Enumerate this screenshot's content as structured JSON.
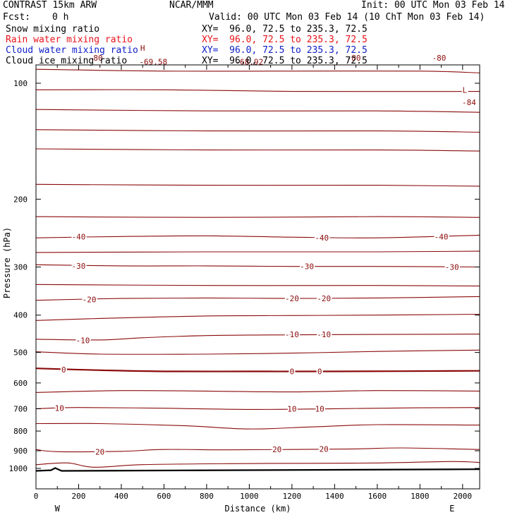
{
  "header": {
    "title": "CONTRAST 15km ARW",
    "center": "NCAR/MMM",
    "init": "Init: 00 UTC Mon 03 Feb 14",
    "fcst_label": "Fcst:",
    "fcst_value": "0 h",
    "valid": "Valid: 00 UTC Mon 03 Feb 14 (10 ChT Mon 03 Feb 14)"
  },
  "fields": [
    {
      "name": "Snow mixing ratio",
      "xy": "XY=  96.0, 72.5 to 235.3, 72.5",
      "color": "#000000"
    },
    {
      "name": "Rain water mixing ratio",
      "xy": "XY=  96.0, 72.5 to 235.3, 72.5",
      "color": "#e8121a"
    },
    {
      "name": "Cloud water mixing ratio",
      "xy": "XY=  96.0, 72.5 to 235.3, 72.5",
      "color": "#1020c8"
    },
    {
      "name": "Cloud ice mixing ratio",
      "xy": "XY=  96.0, 72.5 to 235.3, 72.5",
      "color": "#000000"
    }
  ],
  "chart_data": {
    "type": "contour",
    "title": "",
    "xlabel": "Distance (km)",
    "ylabel": "Pressure (hPa)",
    "xlim": [
      0,
      2080
    ],
    "ylim": [
      1050,
      50
    ],
    "y_scale": "log",
    "x_ticks": [
      0,
      200,
      400,
      600,
      800,
      1000,
      1200,
      1400,
      1600,
      1800,
      2000
    ],
    "y_ticks": [
      100,
      200,
      300,
      400,
      500,
      600,
      700,
      800,
      900,
      1000
    ],
    "x_end_labels": {
      "left": "W",
      "right": "E"
    },
    "contour_color": "#8b0a0a",
    "contour_interval": 5,
    "zero_line_bold": true,
    "contours": [
      {
        "value": -80,
        "labels": [
          {
            "text": "-80",
            "x": 280,
            "p": 86
          },
          {
            "text": "-80",
            "x": 1490,
            "p": 86
          },
          {
            "text": "-80",
            "x": 1890,
            "p": 86
          }
        ],
        "points": [
          [
            0,
            83
          ],
          [
            400,
            82
          ],
          [
            800,
            82
          ],
          [
            1200,
            83
          ],
          [
            1600,
            84
          ],
          [
            2080,
            84
          ]
        ]
      },
      {
        "value": -75,
        "labels": [],
        "points": [
          [
            0,
            92
          ],
          [
            600,
            93
          ],
          [
            1200,
            93
          ],
          [
            1800,
            93
          ],
          [
            2080,
            94
          ]
        ]
      },
      {
        "value": -70,
        "labels": [],
        "points": [
          [
            0,
            104
          ],
          [
            600,
            104
          ],
          [
            1200,
            105
          ],
          [
            2080,
            105
          ]
        ]
      },
      {
        "value": -65,
        "labels": [],
        "points": [
          [
            0,
            117
          ],
          [
            800,
            118
          ],
          [
            1600,
            118
          ],
          [
            2080,
            119
          ]
        ]
      },
      {
        "value": -60,
        "labels": [],
        "points": [
          [
            0,
            132
          ],
          [
            800,
            133
          ],
          [
            1600,
            133
          ],
          [
            2080,
            134
          ]
        ]
      },
      {
        "value": -55,
        "labels": [],
        "points": [
          [
            0,
            148
          ],
          [
            800,
            149
          ],
          [
            1600,
            149
          ],
          [
            2080,
            150
          ]
        ]
      },
      {
        "value": -50,
        "labels": [],
        "points": [
          [
            0,
            183
          ],
          [
            800,
            184
          ],
          [
            1600,
            184
          ],
          [
            2080,
            185
          ]
        ]
      },
      {
        "value": -45,
        "labels": [],
        "points": [
          [
            0,
            222
          ],
          [
            800,
            223
          ],
          [
            1600,
            222
          ],
          [
            2080,
            223
          ]
        ]
      },
      {
        "value": -40,
        "labels": [
          {
            "text": "-40",
            "x": 200,
            "p": 250
          },
          {
            "text": "-40",
            "x": 1340,
            "p": 252
          },
          {
            "text": "-40",
            "x": 1900,
            "p": 250
          }
        ],
        "points": [
          [
            0,
            252
          ],
          [
            400,
            250
          ],
          [
            800,
            249
          ],
          [
            1200,
            251
          ],
          [
            1600,
            252
          ],
          [
            2080,
            248
          ]
        ]
      },
      {
        "value": -35,
        "labels": [],
        "points": [
          [
            0,
            275
          ],
          [
            800,
            274
          ],
          [
            1600,
            274
          ],
          [
            2080,
            273
          ]
        ]
      },
      {
        "value": -30,
        "labels": [
          {
            "text": "-30",
            "x": 200,
            "p": 298
          },
          {
            "text": "-30",
            "x": 1270,
            "p": 299
          },
          {
            "text": "-30",
            "x": 1950,
            "p": 300
          }
        ],
        "points": [
          [
            0,
            296
          ],
          [
            400,
            298
          ],
          [
            800,
            298
          ],
          [
            1200,
            299
          ],
          [
            1600,
            299
          ],
          [
            2080,
            300
          ]
        ]
      },
      {
        "value": -25,
        "labels": [],
        "points": [
          [
            0,
            333
          ],
          [
            800,
            335
          ],
          [
            1600,
            335
          ],
          [
            2080,
            336
          ]
        ]
      },
      {
        "value": -20,
        "labels": [
          {
            "text": "-20",
            "x": 250,
            "p": 364
          },
          {
            "text": "-20",
            "x": 1200,
            "p": 362
          },
          {
            "text": "-20",
            "x": 1350,
            "p": 362
          }
        ],
        "points": [
          [
            0,
            366
          ],
          [
            400,
            362
          ],
          [
            800,
            361
          ],
          [
            1200,
            362
          ],
          [
            1600,
            361
          ],
          [
            2080,
            358
          ]
        ]
      },
      {
        "value": -15,
        "labels": [],
        "points": [
          [
            0,
            413
          ],
          [
            300,
            408
          ],
          [
            800,
            402
          ],
          [
            1200,
            401
          ],
          [
            1600,
            400
          ],
          [
            2080,
            398
          ]
        ]
      },
      {
        "value": -10,
        "labels": [
          {
            "text": "-10",
            "x": 220,
            "p": 465
          },
          {
            "text": "-10",
            "x": 1200,
            "p": 449
          },
          {
            "text": "-10",
            "x": 1350,
            "p": 449
          }
        ],
        "points": [
          [
            0,
            462
          ],
          [
            300,
            464
          ],
          [
            500,
            458
          ],
          [
            800,
            452
          ],
          [
            1200,
            450
          ],
          [
            1600,
            449
          ],
          [
            2080,
            448
          ]
        ]
      },
      {
        "value": -5,
        "labels": [],
        "points": [
          [
            0,
            498
          ],
          [
            300,
            505
          ],
          [
            800,
            505
          ],
          [
            1200,
            502
          ],
          [
            1600,
            497
          ],
          [
            2080,
            493
          ]
        ]
      },
      {
        "value": 0,
        "labels": [
          {
            "text": "0",
            "x": 130,
            "p": 554
          },
          {
            "text": "0",
            "x": 1200,
            "p": 560
          },
          {
            "text": "0",
            "x": 1330,
            "p": 560
          }
        ],
        "points": [
          [
            0,
            550
          ],
          [
            300,
            556
          ],
          [
            600,
            560
          ],
          [
            1000,
            560
          ],
          [
            1400,
            560
          ],
          [
            2080,
            558
          ]
        ]
      },
      {
        "value": 5,
        "labels": [],
        "points": [
          [
            0,
            635
          ],
          [
            400,
            628
          ],
          [
            800,
            630
          ],
          [
            1200,
            633
          ],
          [
            1600,
            628
          ],
          [
            2080,
            630
          ]
        ]
      },
      {
        "value": 10,
        "labels": [
          {
            "text": "10",
            "x": 110,
            "p": 697
          },
          {
            "text": "10",
            "x": 1200,
            "p": 700
          },
          {
            "text": "10",
            "x": 1330,
            "p": 700
          }
        ],
        "points": [
          [
            0,
            700
          ],
          [
            200,
            695
          ],
          [
            600,
            698
          ],
          [
            1000,
            703
          ],
          [
            1400,
            700
          ],
          [
            1800,
            696
          ],
          [
            2080,
            695
          ]
        ]
      },
      {
        "value": 15,
        "labels": [],
        "points": [
          [
            0,
            765
          ],
          [
            300,
            765
          ],
          [
            700,
            775
          ],
          [
            1000,
            790
          ],
          [
            1300,
            780
          ],
          [
            1600,
            770
          ],
          [
            2080,
            772
          ]
        ]
      },
      {
        "value": 20,
        "labels": [
          {
            "text": "20",
            "x": 300,
            "p": 905
          },
          {
            "text": "20",
            "x": 1130,
            "p": 893
          },
          {
            "text": "20",
            "x": 1350,
            "p": 890
          }
        ],
        "points": [
          [
            0,
            893
          ],
          [
            100,
            905
          ],
          [
            400,
            903
          ],
          [
            600,
            893
          ],
          [
            900,
            895
          ],
          [
            1200,
            893
          ],
          [
            1500,
            890
          ],
          [
            1720,
            885
          ],
          [
            2080,
            893
          ]
        ]
      },
      {
        "value": 25,
        "labels": [],
        "points": [
          [
            0,
            978
          ],
          [
            150,
            968
          ],
          [
            270,
            993
          ],
          [
            500,
            978
          ],
          [
            900,
            972
          ],
          [
            1300,
            970
          ],
          [
            1600,
            968
          ],
          [
            1950,
            960
          ],
          [
            2080,
            965
          ]
        ]
      }
    ],
    "point_labels": [
      {
        "text": "-69.58",
        "x": 550,
        "p": 88
      },
      {
        "text": "-68.92",
        "x": 1000,
        "p": 88
      },
      {
        "text": "-84",
        "x": 2030,
        "p": 112
      },
      {
        "text": "H",
        "x": 500,
        "p": 81
      },
      {
        "text": "L",
        "x": 2010,
        "p": 104
      }
    ],
    "terrain": [
      [
        0,
        1015
      ],
      [
        70,
        1011
      ],
      [
        90,
        998
      ],
      [
        120,
        1015
      ],
      [
        2080,
        1005
      ]
    ]
  }
}
